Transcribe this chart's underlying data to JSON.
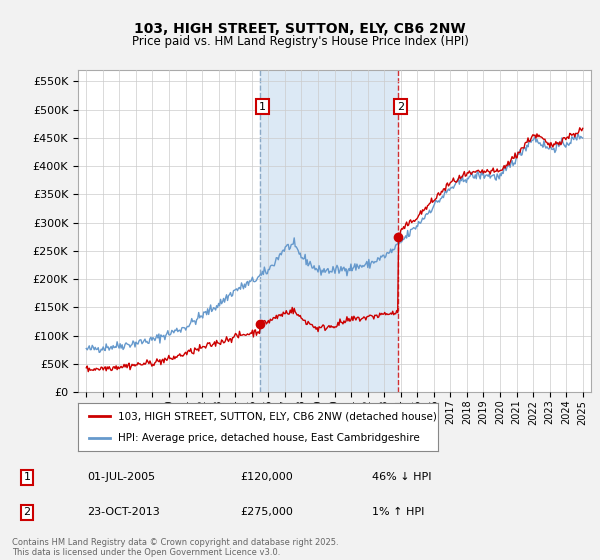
{
  "title": "103, HIGH STREET, SUTTON, ELY, CB6 2NW",
  "subtitle": "Price paid vs. HM Land Registry's House Price Index (HPI)",
  "legend_line1": "103, HIGH STREET, SUTTON, ELY, CB6 2NW (detached house)",
  "legend_line2": "HPI: Average price, detached house, East Cambridgeshire",
  "footer": "Contains HM Land Registry data © Crown copyright and database right 2025.\nThis data is licensed under the Open Government Licence v3.0.",
  "annotation1_date": "01-JUL-2005",
  "annotation1_price": "£120,000",
  "annotation1_hpi": "46% ↓ HPI",
  "annotation2_date": "23-OCT-2013",
  "annotation2_price": "£275,000",
  "annotation2_hpi": "1% ↑ HPI",
  "sale1_year": 2005.5,
  "sale1_value": 120000,
  "sale2_year": 2013.83,
  "sale2_value": 275000,
  "hpi_color": "#6699cc",
  "price_color": "#cc0000",
  "background_color": "#f2f2f2",
  "plot_bg_color": "#ffffff",
  "grid_color": "#cccccc",
  "shade_color": "#dce9f5",
  "vline1_color": "#7799bb",
  "vline2_color": "#cc0000",
  "ylim": [
    0,
    570000
  ],
  "xlim_start": 1994.5,
  "xlim_end": 2025.5
}
